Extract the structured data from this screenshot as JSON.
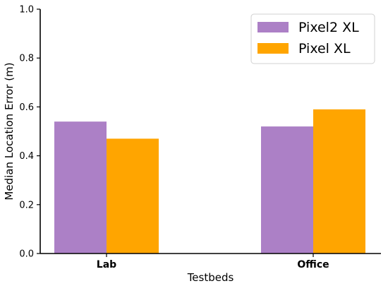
{
  "chart_data": {
    "type": "bar",
    "categories": [
      "Lab",
      "Office"
    ],
    "series": [
      {
        "name": "Pixel2 XL",
        "values": [
          0.54,
          0.52
        ],
        "color": "#ac80c6"
      },
      {
        "name": "Pixel XL",
        "values": [
          0.47,
          0.59
        ],
        "color": "#ffa500"
      }
    ],
    "xlabel": "Testbeds",
    "ylabel": "Median Location Error (m)",
    "ylim": [
      0,
      1.0
    ],
    "yticks": [
      "0.0",
      "0.2",
      "0.4",
      "0.6",
      "0.8",
      "1.0"
    ],
    "grid": false,
    "legend_position": "top-right"
  }
}
